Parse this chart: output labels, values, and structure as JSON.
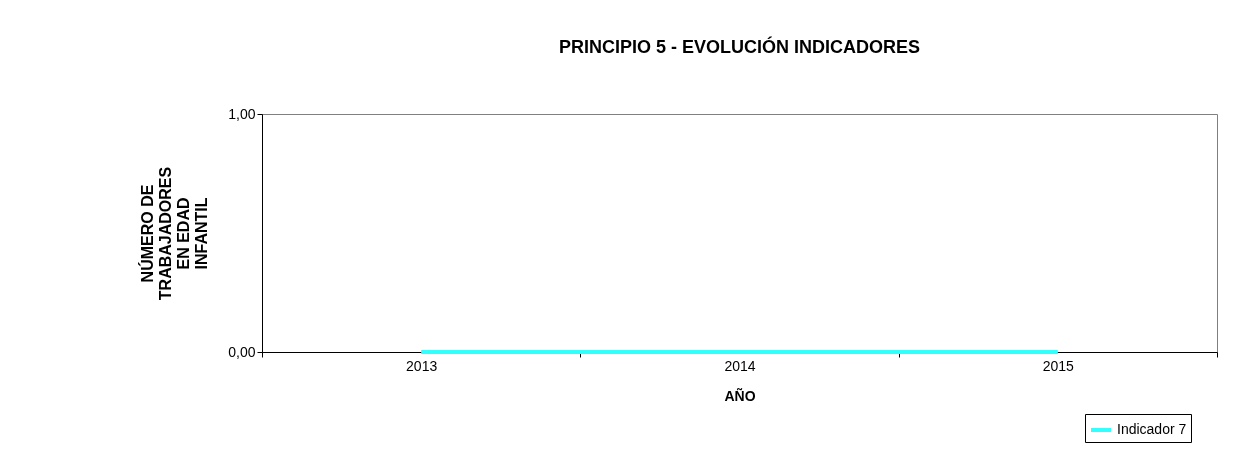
{
  "chart_data": {
    "type": "line",
    "title": "PRINCIPIO 5 - EVOLUCIÓN INDICADORES",
    "xlabel": "AÑO",
    "ylabel": "NÚMERO DE TRABAJADORES EN EDAD INFANTIL",
    "categories": [
      "2013",
      "2014",
      "2015"
    ],
    "series": [
      {
        "name": "Indicador 7",
        "color": "#33ffff",
        "values": [
          0,
          0,
          0
        ]
      }
    ],
    "ylim": [
      0,
      1
    ],
    "yticks": [
      {
        "value": 0,
        "label": "0,00"
      },
      {
        "value": 1,
        "label": "1,00"
      }
    ],
    "grid": false,
    "legend": "bottom right",
    "marker": "none",
    "line_style": "solid"
  }
}
